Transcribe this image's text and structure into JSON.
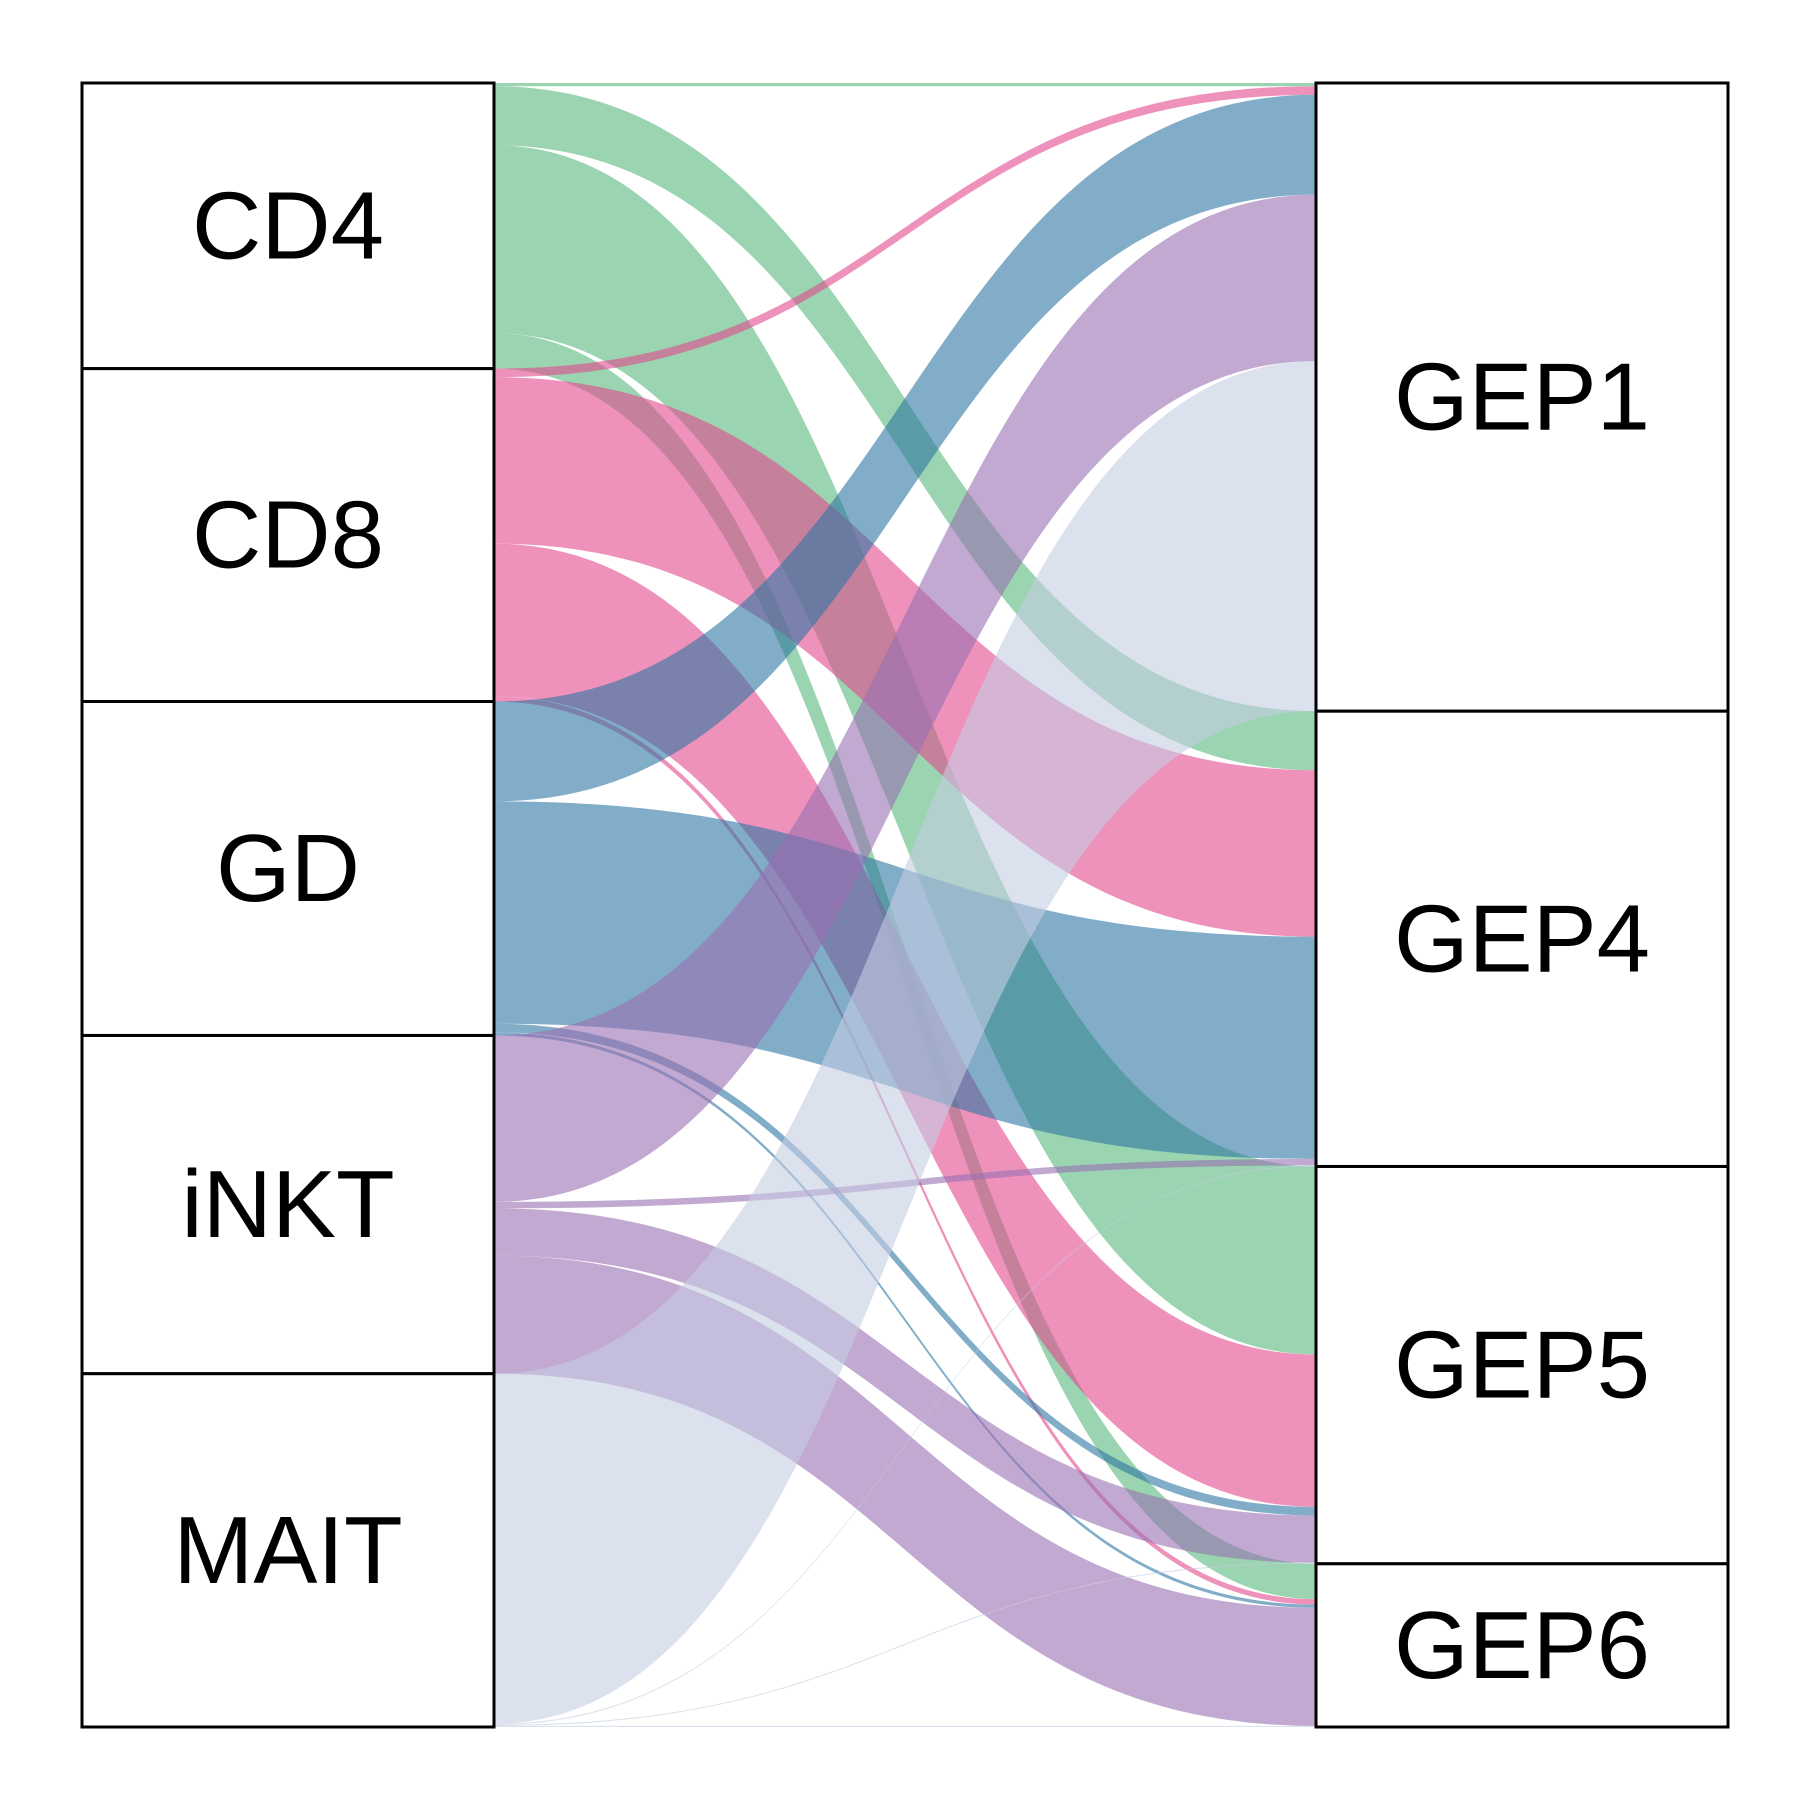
{
  "chart_data": {
    "type": "alluvial",
    "left_axis": {
      "strata": [
        {
          "id": "CD4",
          "label": "CD4",
          "color": "#57b87c"
        },
        {
          "id": "CD8",
          "label": "CD8",
          "color": "#e34a8e"
        },
        {
          "id": "GD",
          "label": "GD",
          "color": "#2f77a3"
        },
        {
          "id": "iNKT",
          "label": "iNKT",
          "color": "#9a70b3"
        },
        {
          "id": "MAIT",
          "label": "MAIT",
          "color": "#c5cde3"
        }
      ]
    },
    "right_axis": {
      "strata": [
        {
          "id": "GEP1",
          "label": "GEP1"
        },
        {
          "id": "GEP4",
          "label": "GEP4"
        },
        {
          "id": "GEP5",
          "label": "GEP5"
        },
        {
          "id": "GEP6",
          "label": "GEP6"
        }
      ]
    },
    "flows": [
      {
        "from": "CD4",
        "to": "GEP1",
        "value": 0.3
      },
      {
        "from": "CD4",
        "to": "GEP4",
        "value": 5.5
      },
      {
        "from": "CD4",
        "to": "GEP5",
        "value": 17.5
      },
      {
        "from": "CD4",
        "to": "GEP6",
        "value": 3.3
      },
      {
        "from": "CD8",
        "to": "GEP1",
        "value": 0.8
      },
      {
        "from": "CD8",
        "to": "GEP4",
        "value": 15.5
      },
      {
        "from": "CD8",
        "to": "GEP5",
        "value": 14.2
      },
      {
        "from": "CD8",
        "to": "GEP6",
        "value": 0.5
      },
      {
        "from": "GD",
        "to": "GEP1",
        "value": 9.3
      },
      {
        "from": "GD",
        "to": "GEP4",
        "value": 20.7
      },
      {
        "from": "GD",
        "to": "GEP5",
        "value": 0.8
      },
      {
        "from": "GD",
        "to": "GEP6",
        "value": 0.3
      },
      {
        "from": "iNKT",
        "to": "GEP1",
        "value": 15.5
      },
      {
        "from": "iNKT",
        "to": "GEP4",
        "value": 0.6
      },
      {
        "from": "iNKT",
        "to": "GEP5",
        "value": 4.4
      },
      {
        "from": "iNKT",
        "to": "GEP6",
        "value": 11.0
      },
      {
        "from": "MAIT",
        "to": "GEP1",
        "value": 32.6
      },
      {
        "from": "MAIT",
        "to": "GEP4",
        "value": 0.1
      },
      {
        "from": "MAIT",
        "to": "GEP5",
        "value": 0.1
      },
      {
        "from": "MAIT",
        "to": "GEP6",
        "value": 0.1
      }
    ]
  }
}
